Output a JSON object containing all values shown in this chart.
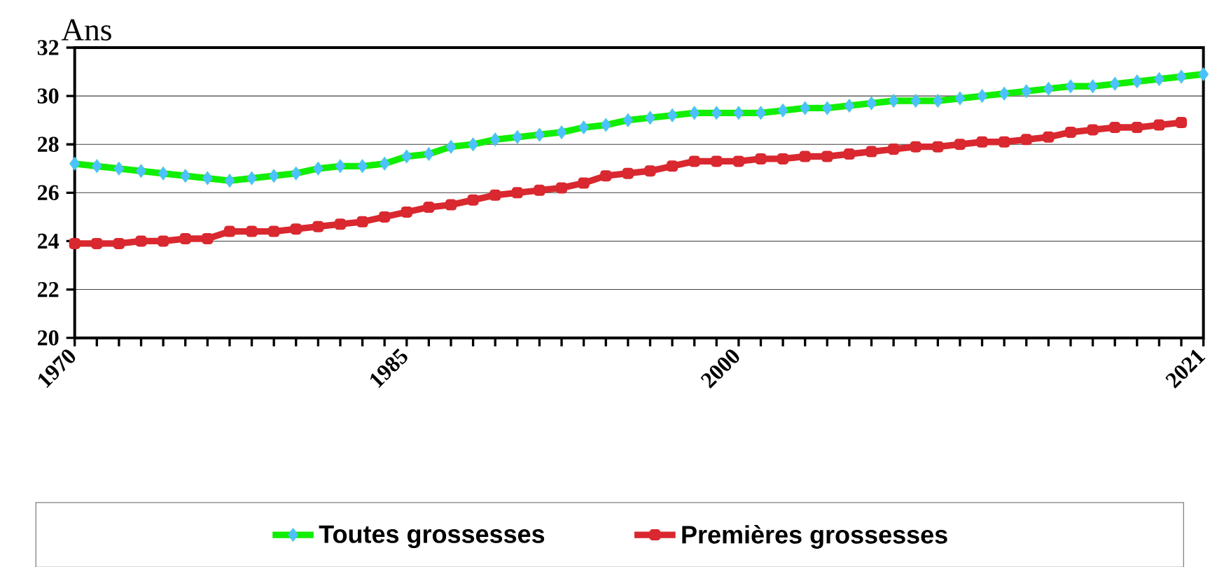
{
  "chart_data": {
    "type": "line",
    "ylabel": "Ans",
    "x": [
      1970,
      1971,
      1972,
      1973,
      1974,
      1975,
      1976,
      1977,
      1978,
      1979,
      1980,
      1981,
      1982,
      1983,
      1984,
      1985,
      1986,
      1987,
      1988,
      1989,
      1990,
      1991,
      1992,
      1993,
      1994,
      1995,
      1996,
      1997,
      1998,
      1999,
      2000,
      2001,
      2002,
      2003,
      2004,
      2005,
      2006,
      2007,
      2008,
      2009,
      2010,
      2011,
      2012,
      2013,
      2014,
      2015,
      2016,
      2017,
      2018,
      2019,
      2020,
      2021
    ],
    "series": [
      {
        "name": "Toutes grossesses",
        "color": "#11ee00",
        "marker": "diamond",
        "values": [
          27.2,
          27.1,
          27.0,
          26.9,
          26.8,
          26.7,
          26.6,
          26.5,
          26.6,
          26.7,
          26.8,
          27.0,
          27.1,
          27.1,
          27.2,
          27.5,
          27.6,
          27.9,
          28.0,
          28.2,
          28.3,
          28.4,
          28.5,
          28.7,
          28.8,
          29.0,
          29.1,
          29.2,
          29.3,
          29.3,
          29.3,
          29.3,
          29.4,
          29.5,
          29.5,
          29.6,
          29.7,
          29.8,
          29.8,
          29.8,
          29.9,
          30.0,
          30.1,
          30.2,
          30.3,
          30.4,
          30.4,
          30.5,
          30.6,
          30.7,
          30.8,
          30.9
        ]
      },
      {
        "name": "Premières grossesses",
        "color": "#d9282f",
        "marker": "square",
        "values": [
          23.9,
          23.9,
          23.9,
          24.0,
          24.0,
          24.1,
          24.1,
          24.4,
          24.4,
          24.4,
          24.5,
          24.6,
          24.7,
          24.8,
          25.0,
          25.2,
          25.4,
          25.5,
          25.7,
          25.9,
          26.0,
          26.1,
          26.2,
          26.4,
          26.7,
          26.8,
          26.9,
          27.1,
          27.3,
          27.3,
          27.3,
          27.4,
          27.4,
          27.5,
          27.5,
          27.6,
          27.7,
          27.8,
          27.9,
          27.9,
          28.0,
          28.1,
          28.1,
          28.2,
          28.3,
          28.5,
          28.6,
          28.7,
          28.7,
          28.8,
          28.9,
          null
        ]
      }
    ],
    "xlim": [
      1970,
      2021
    ],
    "ylim": [
      20,
      32
    ],
    "xticks": [
      1970,
      {
        "value": 1971,
        "label": null
      },
      {
        "value": 1972,
        "label": null
      },
      {
        "value": 1973,
        "label": null
      },
      {
        "value": 1974,
        "label": null
      },
      {
        "value": 1975,
        "label": null
      },
      {
        "value": 1976,
        "label": null
      },
      {
        "value": 1977,
        "label": null
      },
      {
        "value": 1978,
        "label": null
      },
      {
        "value": 1979,
        "label": null
      },
      {
        "value": 1980,
        "label": null
      },
      {
        "value": 1981,
        "label": null
      },
      {
        "value": 1982,
        "label": null
      },
      {
        "value": 1983,
        "label": null
      },
      {
        "value": 1984,
        "label": null
      },
      1985,
      {
        "value": 1986,
        "label": null
      },
      {
        "value": 1987,
        "label": null
      },
      {
        "value": 1988,
        "label": null
      },
      {
        "value": 1989,
        "label": null
      },
      {
        "value": 1990,
        "label": null
      },
      {
        "value": 1991,
        "label": null
      },
      {
        "value": 1992,
        "label": null
      },
      {
        "value": 1993,
        "label": null
      },
      {
        "value": 1994,
        "label": null
      },
      {
        "value": 1995,
        "label": null
      },
      {
        "value": 1996,
        "label": null
      },
      {
        "value": 1997,
        "label": null
      },
      {
        "value": 1998,
        "label": null
      },
      {
        "value": 1999,
        "label": null
      },
      2000,
      {
        "value": 2001,
        "label": null
      },
      {
        "value": 2002,
        "label": null
      },
      {
        "value": 2003,
        "label": null
      },
      {
        "value": 2004,
        "label": null
      },
      {
        "value": 2005,
        "label": null
      },
      {
        "value": 2006,
        "label": null
      },
      {
        "value": 2007,
        "label": null
      },
      {
        "value": 2008,
        "label": null
      },
      {
        "value": 2009,
        "label": null
      },
      {
        "value": 2010,
        "label": null
      },
      {
        "value": 2011,
        "label": null
      },
      {
        "value": 2012,
        "label": null
      },
      {
        "value": 2013,
        "label": null
      },
      {
        "value": 2014,
        "label": null
      },
      {
        "value": 2015,
        "label": null
      },
      {
        "value": 2016,
        "label": null
      },
      {
        "value": 2017,
        "label": null
      },
      {
        "value": 2018,
        "label": null
      },
      {
        "value": 2019,
        "label": null
      },
      {
        "value": 2020,
        "label": null
      },
      2021
    ],
    "yticks": [
      20,
      22,
      24,
      26,
      28,
      30,
      32
    ],
    "grid": "y",
    "legend": "bottom"
  }
}
